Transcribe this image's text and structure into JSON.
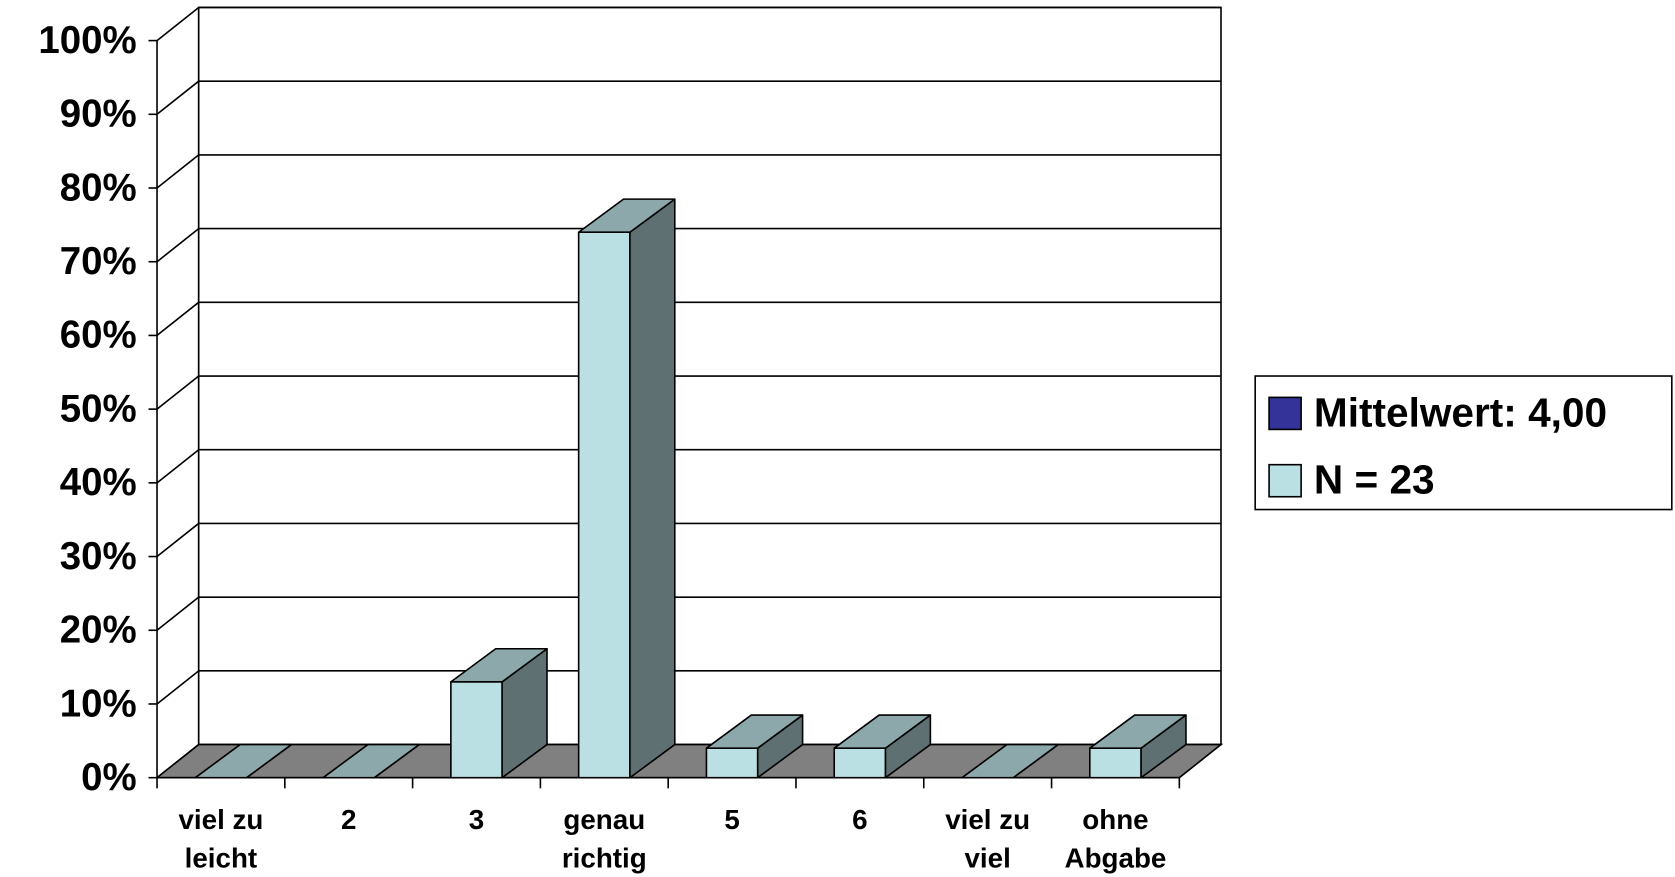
{
  "chart_data": {
    "type": "bar3d",
    "categories": [
      "viel zu leicht",
      "2",
      "3",
      "genau richtig",
      "5",
      "6",
      "viel zu viel",
      "ohne Abgabe"
    ],
    "series": [
      {
        "name": "Mittelwert: 4,00",
        "color": "#333399",
        "values": [
          null,
          null,
          null,
          null,
          null,
          null,
          null,
          null
        ]
      },
      {
        "name": "N = 23",
        "color": "#bbe0e3",
        "values": [
          0,
          0,
          13,
          74,
          4,
          4,
          0,
          4
        ]
      }
    ],
    "ylim": [
      0,
      100
    ],
    "yticks": [
      {
        "value": 0,
        "label": "0%"
      },
      {
        "value": 10,
        "label": "10%"
      },
      {
        "value": 20,
        "label": "20%"
      },
      {
        "value": 30,
        "label": "30%"
      },
      {
        "value": 40,
        "label": "40%"
      },
      {
        "value": 50,
        "label": "50%"
      },
      {
        "value": 60,
        "label": "60%"
      },
      {
        "value": 70,
        "label": "70%"
      },
      {
        "value": 80,
        "label": "80%"
      },
      {
        "value": 90,
        "label": "90%"
      },
      {
        "value": 100,
        "label": "100%"
      }
    ],
    "grid": true,
    "legend": "right"
  }
}
